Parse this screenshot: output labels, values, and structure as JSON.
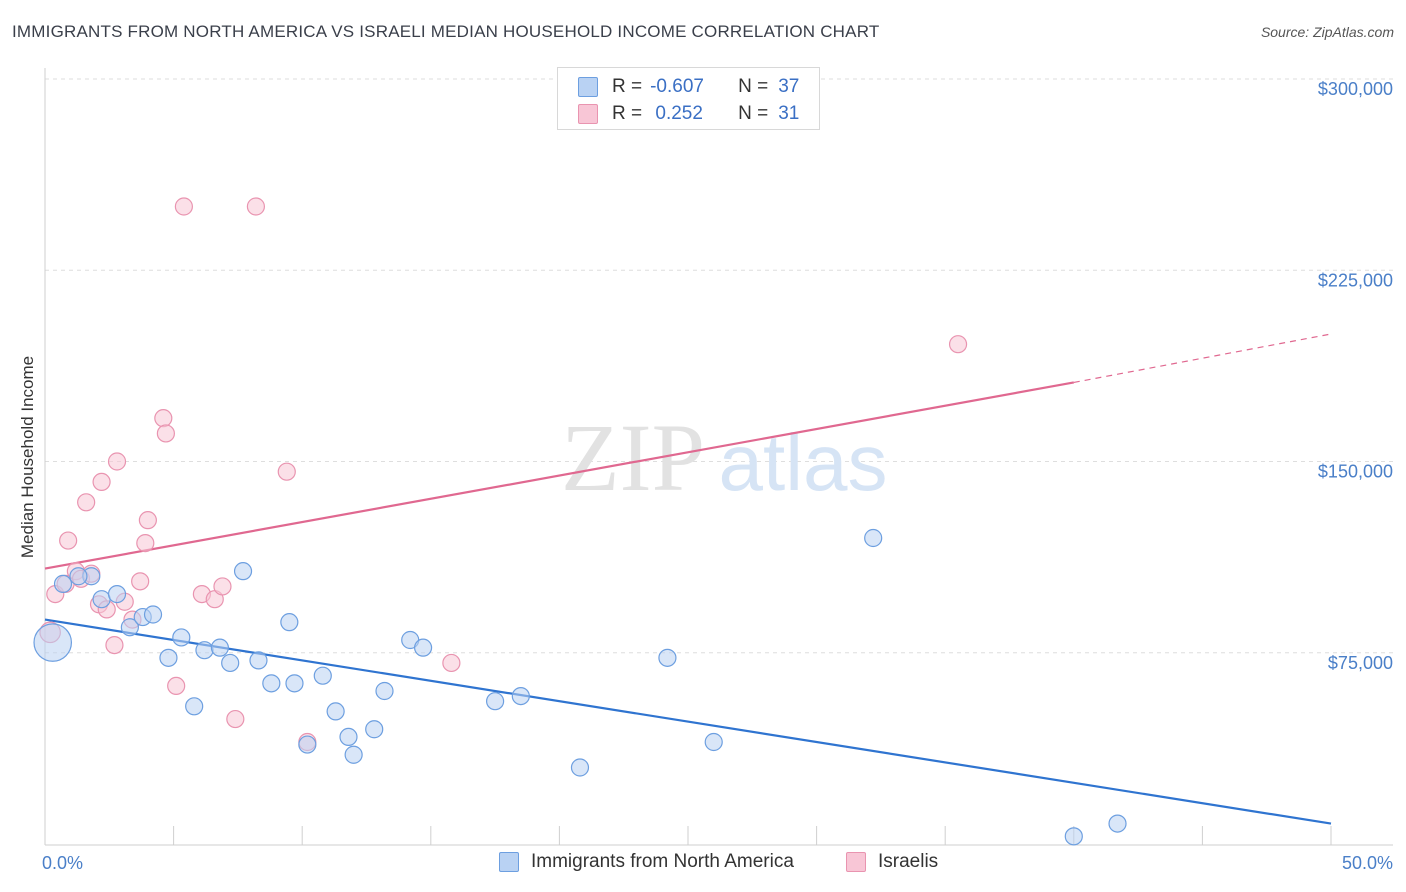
{
  "title": "IMMIGRANTS FROM NORTH AMERICA VS ISRAELI MEDIAN HOUSEHOLD INCOME CORRELATION CHART",
  "source": "Source: ZipAtlas.com",
  "watermark": {
    "zip": "ZIP",
    "atlas": "atlas"
  },
  "colors": {
    "blue": "#6d9fe0",
    "blue_fill": "#b9d2f3",
    "blue_line": "#2f74d0",
    "pink": "#e994b0",
    "pink_fill": "#f8c6d6",
    "pink_line": "#e06890",
    "axis_text": "#4a7fc8",
    "grid": "#dcdcdc"
  },
  "legend": {
    "rows": [
      {
        "r_label": "R =",
        "r_value": "-0.607",
        "n_label": "N =",
        "n_value": "37"
      },
      {
        "r_label": "R =",
        "r_value": " 0.252",
        "n_label": "N =",
        "n_value": "31"
      }
    ]
  },
  "bottom_legend": {
    "series1": "Immigrants from North America",
    "series2": "Israelis"
  },
  "chart_data": {
    "type": "scatter",
    "title": "IMMIGRANTS FROM NORTH AMERICA VS ISRAELI MEDIAN HOUSEHOLD INCOME CORRELATION CHART",
    "xlabel": "",
    "ylabel": "Median Household Income",
    "xlim": [
      0,
      50
    ],
    "ylim": [
      0,
      300000
    ],
    "x_tick_labels": [
      "0.0%",
      "50.0%"
    ],
    "y_ticks": [
      75000,
      150000,
      225000,
      300000
    ],
    "y_tick_labels": [
      "$75,000",
      "$150,000",
      "$225,000",
      "$300,000"
    ],
    "grid": true,
    "legend_position": "top-center",
    "series": [
      {
        "name": "Immigrants from North America",
        "color": "#6d9fe0",
        "points": [
          {
            "x": 0.3,
            "y": 79000,
            "s": 2.2
          },
          {
            "x": 0.7,
            "y": 102000,
            "s": 1
          },
          {
            "x": 1.8,
            "y": 105000,
            "s": 1
          },
          {
            "x": 2.2,
            "y": 96000,
            "s": 1
          },
          {
            "x": 2.8,
            "y": 98000,
            "s": 1
          },
          {
            "x": 3.3,
            "y": 85000,
            "s": 1
          },
          {
            "x": 3.8,
            "y": 89000,
            "s": 1
          },
          {
            "x": 4.2,
            "y": 90000,
            "s": 1
          },
          {
            "x": 4.8,
            "y": 73000,
            "s": 1
          },
          {
            "x": 5.3,
            "y": 81000,
            "s": 1
          },
          {
            "x": 5.8,
            "y": 54000,
            "s": 1
          },
          {
            "x": 6.2,
            "y": 76000,
            "s": 1
          },
          {
            "x": 6.8,
            "y": 77000,
            "s": 1
          },
          {
            "x": 7.2,
            "y": 71000,
            "s": 1
          },
          {
            "x": 7.7,
            "y": 107000,
            "s": 1
          },
          {
            "x": 8.3,
            "y": 72000,
            "s": 1
          },
          {
            "x": 8.8,
            "y": 63000,
            "s": 1
          },
          {
            "x": 9.5,
            "y": 87000,
            "s": 1
          },
          {
            "x": 9.7,
            "y": 63000,
            "s": 1
          },
          {
            "x": 10.2,
            "y": 39000,
            "s": 1
          },
          {
            "x": 10.8,
            "y": 66000,
            "s": 1
          },
          {
            "x": 11.3,
            "y": 52000,
            "s": 1
          },
          {
            "x": 11.8,
            "y": 42000,
            "s": 1
          },
          {
            "x": 12.0,
            "y": 35000,
            "s": 1
          },
          {
            "x": 12.8,
            "y": 45000,
            "s": 1
          },
          {
            "x": 13.2,
            "y": 60000,
            "s": 1
          },
          {
            "x": 14.2,
            "y": 80000,
            "s": 1
          },
          {
            "x": 14.7,
            "y": 77000,
            "s": 1
          },
          {
            "x": 17.5,
            "y": 56000,
            "s": 1
          },
          {
            "x": 18.5,
            "y": 58000,
            "s": 1
          },
          {
            "x": 20.8,
            "y": 30000,
            "s": 1
          },
          {
            "x": 24.2,
            "y": 73000,
            "s": 1
          },
          {
            "x": 26.0,
            "y": 40000,
            "s": 1
          },
          {
            "x": 32.2,
            "y": 120000,
            "s": 1
          },
          {
            "x": 40.0,
            "y": 3000,
            "s": 1
          },
          {
            "x": 41.7,
            "y": 8000,
            "s": 1
          },
          {
            "x": 1.3,
            "y": 105000,
            "s": 1
          }
        ],
        "trend": {
          "x1": 0,
          "y1": 88000,
          "x2": 50,
          "y2": 8000
        }
      },
      {
        "name": "Israelis",
        "color": "#e994b0",
        "points": [
          {
            "x": 0.2,
            "y": 83000,
            "s": 1.2
          },
          {
            "x": 0.4,
            "y": 98000,
            "s": 1
          },
          {
            "x": 0.8,
            "y": 102000,
            "s": 1
          },
          {
            "x": 0.9,
            "y": 119000,
            "s": 1
          },
          {
            "x": 1.2,
            "y": 107000,
            "s": 1
          },
          {
            "x": 1.4,
            "y": 104000,
            "s": 1
          },
          {
            "x": 1.6,
            "y": 134000,
            "s": 1
          },
          {
            "x": 1.8,
            "y": 106000,
            "s": 1
          },
          {
            "x": 2.1,
            "y": 94000,
            "s": 1
          },
          {
            "x": 2.2,
            "y": 142000,
            "s": 1
          },
          {
            "x": 2.4,
            "y": 92000,
            "s": 1
          },
          {
            "x": 2.7,
            "y": 78000,
            "s": 1
          },
          {
            "x": 2.8,
            "y": 150000,
            "s": 1
          },
          {
            "x": 3.1,
            "y": 95000,
            "s": 1
          },
          {
            "x": 3.4,
            "y": 88000,
            "s": 1
          },
          {
            "x": 3.7,
            "y": 103000,
            "s": 1
          },
          {
            "x": 3.9,
            "y": 118000,
            "s": 1
          },
          {
            "x": 4.0,
            "y": 127000,
            "s": 1
          },
          {
            "x": 4.6,
            "y": 167000,
            "s": 1
          },
          {
            "x": 4.7,
            "y": 161000,
            "s": 1
          },
          {
            "x": 5.1,
            "y": 62000,
            "s": 1
          },
          {
            "x": 5.4,
            "y": 250000,
            "s": 1
          },
          {
            "x": 6.1,
            "y": 98000,
            "s": 1
          },
          {
            "x": 6.6,
            "y": 96000,
            "s": 1
          },
          {
            "x": 6.9,
            "y": 101000,
            "s": 1
          },
          {
            "x": 7.4,
            "y": 49000,
            "s": 1
          },
          {
            "x": 8.2,
            "y": 250000,
            "s": 1
          },
          {
            "x": 9.4,
            "y": 146000,
            "s": 1
          },
          {
            "x": 10.2,
            "y": 40000,
            "s": 1
          },
          {
            "x": 15.8,
            "y": 71000,
            "s": 1
          },
          {
            "x": 35.5,
            "y": 196000,
            "s": 1
          }
        ],
        "trend": {
          "x1": 0,
          "y1": 108000,
          "x2": 40,
          "y2": 181000,
          "dash_to_x": 50,
          "dash_to_y": 200000
        }
      }
    ]
  }
}
